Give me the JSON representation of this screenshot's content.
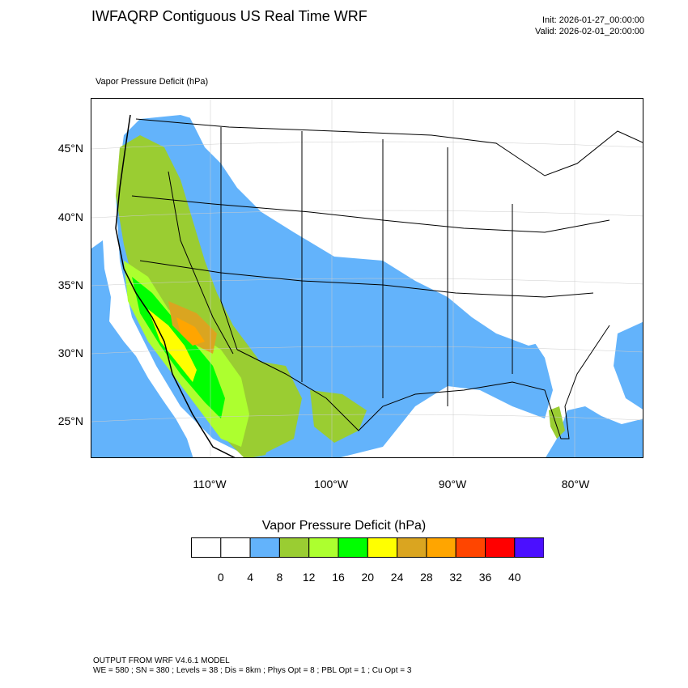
{
  "header": {
    "title": "IWFAQRP Contiguous US Real Time WRF",
    "init": "Init: 2026-01-27_00:00:00",
    "valid": "Valid: 2026-02-01_20:00:00",
    "variable_label": "Vapor Pressure Deficit   (hPa)"
  },
  "map": {
    "lat_labels": [
      "45°N",
      "40°N",
      "35°N",
      "30°N",
      "25°N"
    ],
    "lon_labels": [
      "110°W",
      "100°W",
      "90°W",
      "80°W"
    ],
    "bounds": {
      "lon_min": -119.7,
      "lon_max": -74.3,
      "lat_min": 22.0,
      "lat_max": 48.3
    }
  },
  "colorbar": {
    "title": "Vapor Pressure Deficit  (hPa)",
    "colors": [
      "#ffffff",
      "#ffffff",
      "#63b3fb",
      "#9acd32",
      "#adff2f",
      "#00ff00",
      "#ffff00",
      "#daa520",
      "#ffa500",
      "#ff4500",
      "#ff0000",
      "#4b0fff"
    ],
    "tick_labels": [
      "0",
      "4",
      "8",
      "12",
      "16",
      "20",
      "24",
      "28",
      "32",
      "36",
      "40"
    ]
  },
  "footer": {
    "line1": "OUTPUT FROM WRF V4.6.1 MODEL",
    "line2": "WE = 580 ; SN = 380 ; Levels = 38 ; Dis = 8km ; Phys Opt = 8 ; PBL Opt = 1 ; Cu Opt = 3"
  }
}
